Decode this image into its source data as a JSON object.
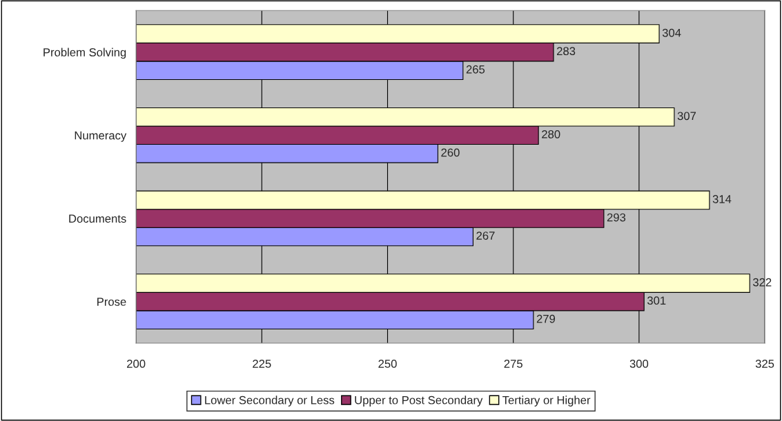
{
  "chart_data": {
    "type": "bar",
    "orientation": "horizontal",
    "categories": [
      "Problem Solving",
      "Numeracy",
      "Documents",
      "Prose"
    ],
    "series": [
      {
        "name": "Lower Secondary or Less",
        "color": "#9999ff",
        "values": [
          265,
          260,
          267,
          279
        ]
      },
      {
        "name": "Upper to Post Secondary",
        "color": "#993366",
        "values": [
          283,
          280,
          293,
          301
        ]
      },
      {
        "name": "Tertiary or Higher",
        "color": "#ffffcc",
        "values": [
          304,
          307,
          314,
          322
        ]
      }
    ],
    "xlim": [
      200,
      325
    ],
    "xticks": [
      200,
      225,
      250,
      275,
      300,
      325
    ],
    "grid": "x",
    "legend": "bottom",
    "data_labels": true
  }
}
